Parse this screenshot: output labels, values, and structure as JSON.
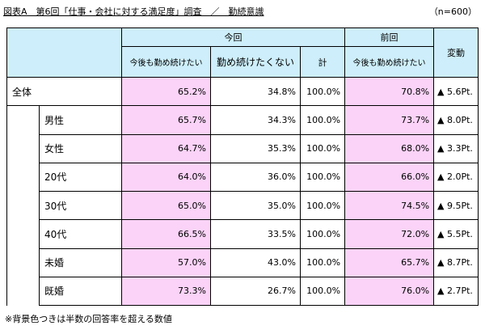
{
  "title": "図表A　第6回「仕事・会社に対する満足度」調査　／　勤続意識",
  "n_note": "（n=600）",
  "header": {
    "current": "今回",
    "previous": "前回",
    "change": "変動",
    "col_continue": "今後も勤め続けたい",
    "col_not_continue": "勤め続けたくない",
    "col_total": "計",
    "col_prev_continue": "今後も勤め続けたい"
  },
  "rows": [
    {
      "label": "全体",
      "cont": "65.2%",
      "not": "34.8%",
      "total": "100.0%",
      "prev": "70.8%",
      "change": "▲ 5.6Pt.",
      "cont_hl": true,
      "not_hl": false,
      "prev_hl": true
    },
    {
      "label": "男性",
      "cont": "65.7%",
      "not": "34.3%",
      "total": "100.0%",
      "prev": "73.7%",
      "change": "▲ 8.0Pt.",
      "cont_hl": true,
      "not_hl": false,
      "prev_hl": true
    },
    {
      "label": "女性",
      "cont": "64.7%",
      "not": "35.3%",
      "total": "100.0%",
      "prev": "68.0%",
      "change": "▲ 3.3Pt.",
      "cont_hl": true,
      "not_hl": false,
      "prev_hl": true
    },
    {
      "label": "20代",
      "cont": "64.0%",
      "not": "36.0%",
      "total": "100.0%",
      "prev": "66.0%",
      "change": "▲ 2.0Pt.",
      "cont_hl": true,
      "not_hl": false,
      "prev_hl": true
    },
    {
      "label": "30代",
      "cont": "65.0%",
      "not": "35.0%",
      "total": "100.0%",
      "prev": "74.5%",
      "change": "▲ 9.5Pt.",
      "cont_hl": true,
      "not_hl": false,
      "prev_hl": true
    },
    {
      "label": "40代",
      "cont": "66.5%",
      "not": "33.5%",
      "total": "100.0%",
      "prev": "72.0%",
      "change": "▲ 5.5Pt.",
      "cont_hl": true,
      "not_hl": false,
      "prev_hl": true
    },
    {
      "label": "未婚",
      "cont": "57.0%",
      "not": "43.0%",
      "total": "100.0%",
      "prev": "65.7%",
      "change": "▲ 8.7Pt.",
      "cont_hl": true,
      "not_hl": false,
      "prev_hl": true
    },
    {
      "label": "既婚",
      "cont": "73.3%",
      "not": "26.7%",
      "total": "100.0%",
      "prev": "76.0%",
      "change": "▲ 2.7Pt.",
      "cont_hl": true,
      "not_hl": false,
      "prev_hl": true
    }
  ],
  "footnote": "※背景色つきは半数の回答率を超える数値",
  "colors": {
    "header_bg": "#cdeefa",
    "highlight_bg": "#fbd3f8"
  },
  "chart_data": {
    "type": "table",
    "title": "図表A　第6回「仕事・会社に対する満足度」調査　／　勤続意識",
    "columns": [
      "今回 今後も勤め続けたい",
      "今回 勤め続けたくない",
      "今回 計",
      "前回 今後も勤め続けたい",
      "変動"
    ],
    "rows": [
      [
        "全体",
        65.2,
        34.8,
        100.0,
        70.8,
        -5.6
      ],
      [
        "男性",
        65.7,
        34.3,
        100.0,
        73.7,
        -8.0
      ],
      [
        "女性",
        64.7,
        35.3,
        100.0,
        68.0,
        -3.3
      ],
      [
        "20代",
        64.0,
        36.0,
        100.0,
        66.0,
        -2.0
      ],
      [
        "30代",
        65.0,
        35.0,
        100.0,
        74.5,
        -9.5
      ],
      [
        "40代",
        66.5,
        33.5,
        100.0,
        72.0,
        -5.5
      ],
      [
        "未婚",
        57.0,
        43.0,
        100.0,
        65.7,
        -8.7
      ],
      [
        "既婚",
        73.3,
        26.7,
        100.0,
        76.0,
        -2.7
      ]
    ],
    "series": [
      {
        "values": [
          65.2,
          65.7,
          64.7,
          64.0,
          65.0,
          66.5,
          57.0,
          73.3
        ]
      },
      {
        "values": [
          34.8,
          34.3,
          35.3,
          36.0,
          35.0,
          33.5,
          43.0,
          26.7
        ]
      },
      {
        "values": [
          70.8,
          73.7,
          68.0,
          66.0,
          74.5,
          72.0,
          65.7,
          76.0
        ]
      }
    ],
    "categories": [
      "全体",
      "男性",
      "女性",
      "20代",
      "30代",
      "40代",
      "未婚",
      "既婚"
    ]
  }
}
